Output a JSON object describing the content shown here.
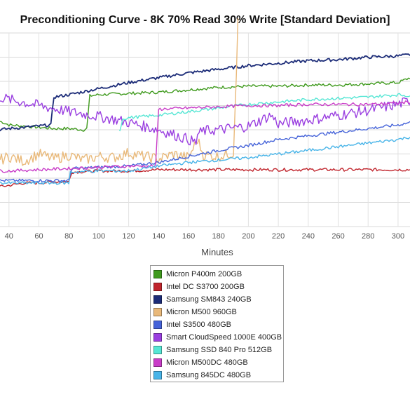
{
  "chart_data": {
    "type": "line",
    "title": "Preconditioning Curve - 8K 70% Read 30% Write [Standard Deviation]",
    "xlabel": "Minutes",
    "ylabel": "",
    "xlim": [
      34,
      308
    ],
    "ylim": [
      0,
      16
    ],
    "x_ticks": [
      40,
      60,
      80,
      100,
      120,
      140,
      160,
      180,
      200,
      220,
      240,
      260,
      280,
      300
    ],
    "y_ticks": [
      0,
      2,
      4,
      6,
      8,
      10,
      12,
      14,
      16
    ],
    "grid": true,
    "legend_position": "bottom-center",
    "series": [
      {
        "name": "Micron P400m 200GB",
        "color": "#3f9a1d",
        "x": [
          34,
          40,
          50,
          60,
          70,
          80,
          90,
          92,
          94,
          100,
          120,
          140,
          160,
          180,
          200,
          220,
          240,
          260,
          280,
          300,
          308
        ],
        "y": [
          8.7,
          8.4,
          8.3,
          8.2,
          8.1,
          8.1,
          8.0,
          8.1,
          10.8,
          10.9,
          11.0,
          11.1,
          11.3,
          11.5,
          11.6,
          11.6,
          11.7,
          11.7,
          11.8,
          11.9,
          12.3
        ]
      },
      {
        "name": "Intel DC S3700 200GB",
        "color": "#c0242c",
        "x": [
          34,
          40,
          50,
          60,
          70,
          80,
          82,
          100,
          120,
          140,
          160,
          180,
          200,
          220,
          240,
          260,
          280,
          300,
          308
        ],
        "y": [
          3.3,
          3.4,
          3.6,
          3.6,
          3.7,
          3.7,
          4.5,
          4.6,
          4.6,
          4.7,
          4.7,
          4.7,
          4.7,
          4.7,
          4.7,
          4.7,
          4.7,
          4.7,
          4.7
        ]
      },
      {
        "name": "Samsung SM843 240GB",
        "color": "#1c2c78",
        "x": [
          34,
          40,
          50,
          60,
          68,
          70,
          80,
          100,
          120,
          140,
          160,
          180,
          200,
          220,
          240,
          260,
          280,
          300,
          308
        ],
        "y": [
          8.0,
          8.1,
          8.2,
          8.3,
          8.4,
          10.7,
          10.9,
          11.4,
          11.9,
          12.3,
          12.7,
          13.0,
          13.3,
          13.5,
          13.7,
          13.8,
          14.0,
          14.1,
          14.2
        ]
      },
      {
        "name": "Micron M500 960GB",
        "color": "#e9b97a",
        "x": [
          34,
          40,
          50,
          60,
          70,
          80,
          90,
          100,
          110,
          120,
          130,
          140,
          150,
          160,
          166,
          170,
          180,
          190,
          192,
          193
        ],
        "y": [
          5.5,
          5.8,
          5.4,
          6.0,
          5.6,
          5.9,
          5.5,
          5.8,
          5.7,
          6.1,
          5.8,
          5.6,
          6.0,
          5.7,
          7.2,
          5.9,
          5.8,
          6.1,
          13.0,
          17.5
        ]
      },
      {
        "name": "Intel S3500 480GB",
        "color": "#4563d9",
        "x": [
          34,
          40,
          60,
          80,
          82,
          100,
          120,
          140,
          160,
          180,
          200,
          220,
          240,
          260,
          280,
          300,
          308
        ],
        "y": [
          3.8,
          3.8,
          3.8,
          3.8,
          4.8,
          4.9,
          5.0,
          5.3,
          5.8,
          6.3,
          6.7,
          7.2,
          7.5,
          7.8,
          8.1,
          8.4,
          8.6
        ]
      },
      {
        "name": "Smart CloudSpeed 1000E 400GB",
        "color": "#9a3fe0",
        "x": [
          34,
          40,
          60,
          80,
          100,
          120,
          140,
          160,
          165,
          166,
          170,
          180,
          200,
          215,
          220,
          240,
          260,
          280,
          300,
          308
        ],
        "y": [
          10.7,
          10.5,
          10.0,
          9.5,
          9.1,
          8.6,
          8.0,
          7.2,
          6.9,
          7.6,
          7.9,
          8.0,
          8.3,
          9.2,
          8.5,
          8.8,
          9.2,
          9.6,
          10.1,
          10.4
        ]
      },
      {
        "name": "Samsung SSD 840 Pro 512GB",
        "color": "#55e6d4",
        "x": [
          114,
          116,
          120,
          140,
          160,
          180,
          200,
          220,
          240,
          260,
          280,
          300,
          308
        ],
        "y": [
          7.9,
          8.9,
          9.0,
          9.2,
          9.5,
          9.8,
          10.1,
          10.3,
          10.5,
          10.6,
          10.7,
          10.9,
          10.8
        ]
      },
      {
        "name": "Micron M500DC 480GB",
        "color": "#c93cc8",
        "x": [
          34,
          40,
          60,
          80,
          100,
          120,
          138,
          140,
          160,
          180,
          200,
          220,
          240,
          260,
          280,
          300,
          308
        ],
        "y": [
          4.6,
          4.6,
          4.7,
          4.8,
          4.9,
          5.0,
          5.0,
          9.7,
          9.8,
          9.9,
          10.0,
          10.0,
          10.1,
          10.1,
          10.1,
          10.2,
          10.3
        ]
      },
      {
        "name": "Samsung 845DC 480GB",
        "color": "#48b4e8",
        "x": [
          34,
          40,
          60,
          80,
          81,
          100,
          120,
          140,
          160,
          180,
          200,
          220,
          240,
          260,
          280,
          300,
          308
        ],
        "y": [
          3.6,
          3.6,
          3.6,
          3.6,
          4.5,
          4.6,
          4.6,
          5.0,
          5.3,
          5.5,
          5.7,
          6.0,
          6.3,
          6.6,
          6.9,
          7.2,
          7.4
        ]
      }
    ]
  }
}
